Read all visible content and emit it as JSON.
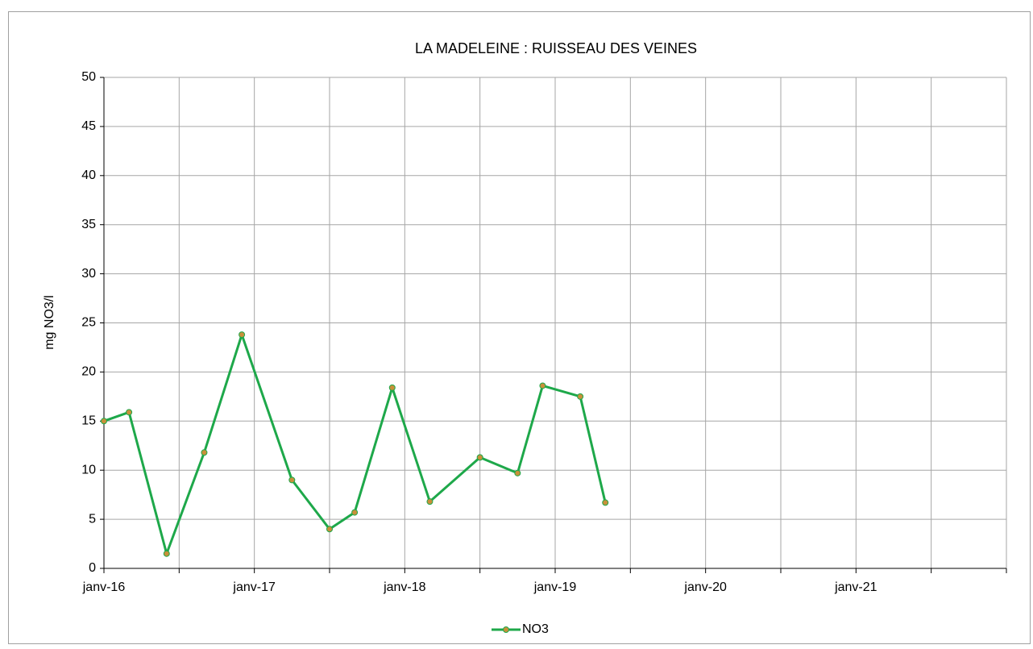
{
  "chart_data": {
    "type": "line",
    "title": "LA MADELEINE : RUISSEAU DES VEINES",
    "y_label": "mg NO3/l",
    "x": [
      "2016-01",
      "2016-03",
      "2016-06",
      "2016-09",
      "2016-12",
      "2017-04",
      "2017-07",
      "2017-09",
      "2017-12",
      "2018-03",
      "2018-07",
      "2018-10",
      "2018-12",
      "2019-03",
      "2019-05"
    ],
    "series": [
      {
        "name": "NO3",
        "color": "#1ea84a",
        "marker_color": "#c8903a",
        "values": [
          15.0,
          15.9,
          1.5,
          11.8,
          23.8,
          9.0,
          4.0,
          5.7,
          18.4,
          6.8,
          11.3,
          9.7,
          18.6,
          17.5,
          6.7
        ]
      }
    ],
    "xlim": [
      "2016-01",
      "2022-01"
    ],
    "xticks": [
      {
        "value": "2016-01",
        "label": "janv-16"
      },
      {
        "value": "2017-01",
        "label": "janv-17"
      },
      {
        "value": "2018-01",
        "label": "janv-18"
      },
      {
        "value": "2019-01",
        "label": "janv-19"
      },
      {
        "value": "2020-01",
        "label": "janv-20"
      },
      {
        "value": "2021-01",
        "label": "janv-21"
      }
    ],
    "minor_xticks": [
      "2016-07",
      "2017-07",
      "2018-07",
      "2019-07",
      "2020-07",
      "2021-07",
      "2022-01"
    ],
    "ylim": [
      0,
      50
    ],
    "yticks": [
      0,
      5,
      10,
      15,
      20,
      25,
      30,
      35,
      40,
      45,
      50
    ],
    "grid": true,
    "legend": "bottom"
  }
}
